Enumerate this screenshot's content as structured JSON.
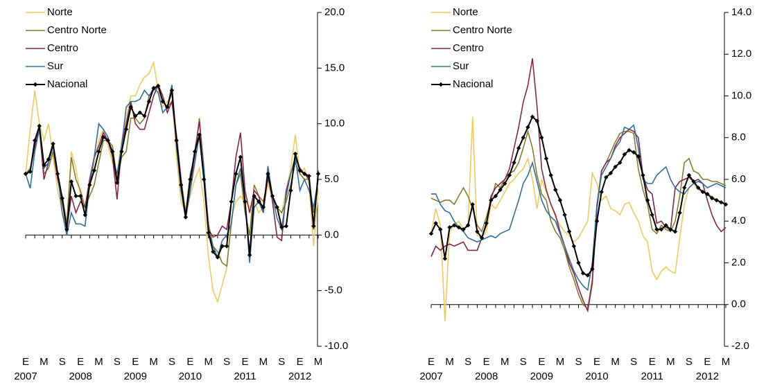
{
  "chart_data": [
    {
      "type": "line",
      "categories": [
        "E",
        null,
        null,
        null,
        "M",
        null,
        null,
        null,
        "S",
        null,
        null,
        null,
        "E",
        null,
        null,
        null,
        "M",
        null,
        null,
        null,
        "S",
        null,
        null,
        null,
        "E",
        null,
        null,
        null,
        "M",
        null,
        null,
        null,
        "S",
        null,
        null,
        null,
        "E",
        null,
        null,
        null,
        "M",
        null,
        null,
        null,
        "S",
        null,
        null,
        null,
        "E",
        null,
        null,
        null,
        "M",
        null,
        null,
        null,
        "S",
        null,
        null,
        null,
        "E",
        null,
        null,
        null,
        "M"
      ],
      "years": [
        "2007",
        "2008",
        "2009",
        "2010",
        "2011",
        "2012"
      ],
      "ylim": [
        -10,
        20
      ],
      "yticks": [
        {
          "value": -10,
          "label": "-10.0"
        },
        {
          "value": -5,
          "label": "-5.0"
        },
        {
          "value": 0,
          "label": "0.0"
        },
        {
          "value": 5,
          "label": "5.0"
        },
        {
          "value": 10,
          "label": "10.0"
        },
        {
          "value": 15,
          "label": "15.0"
        },
        {
          "value": 20,
          "label": "20.0"
        }
      ],
      "legend": "upper-left",
      "series": [
        {
          "name": "Norte",
          "color": "#f2c95c",
          "values": [
            5.5,
            9.5,
            13.0,
            10.0,
            8.5,
            10.0,
            7.0,
            4.0,
            2.0,
            1.0,
            7.5,
            6.0,
            3.5,
            2.5,
            4.5,
            6.5,
            8.5,
            9.5,
            8.0,
            6.5,
            5.5,
            8.5,
            10.5,
            12.5,
            12.5,
            13.5,
            14.2,
            14.5,
            15.5,
            13.0,
            11.5,
            12.0,
            12.5,
            7.0,
            3.0,
            2.0,
            3.5,
            5.0,
            6.0,
            3.0,
            -2.0,
            -5.0,
            -6.0,
            -4.5,
            -3.0,
            1.5,
            3.0,
            3.5,
            3.0,
            2.5,
            3.0,
            2.0,
            2.5,
            4.5,
            3.5,
            2.5,
            2.0,
            4.0,
            6.0,
            9.0,
            5.5,
            6.0,
            4.5,
            -1.0,
            4.0
          ]
        },
        {
          "name": "Centro Norte",
          "color": "#857d2a",
          "values": [
            5.5,
            6.0,
            8.0,
            9.5,
            5.5,
            6.0,
            7.5,
            5.0,
            3.5,
            1.0,
            7.0,
            5.0,
            4.0,
            2.5,
            3.5,
            4.5,
            6.5,
            8.5,
            8.5,
            8.0,
            5.0,
            7.0,
            7.5,
            10.5,
            10.5,
            10.0,
            10.5,
            12.5,
            13.0,
            13.5,
            12.0,
            11.5,
            12.0,
            8.5,
            5.0,
            2.0,
            5.5,
            7.0,
            10.5,
            5.5,
            1.0,
            -1.0,
            -1.5,
            -2.5,
            -2.8,
            1.0,
            4.5,
            5.5,
            2.0,
            0.0,
            4.5,
            3.5,
            3.0,
            5.0,
            3.5,
            2.5,
            2.0,
            3.0,
            4.5,
            6.5,
            5.5,
            5.0,
            5.0,
            2.0,
            5.0
          ]
        },
        {
          "name": "Centro",
          "color": "#8b2346",
          "values": [
            5.5,
            5.8,
            8.0,
            9.5,
            5.0,
            6.5,
            8.0,
            5.0,
            3.0,
            0.5,
            3.5,
            2.0,
            3.0,
            2.5,
            5.0,
            7.0,
            8.0,
            9.2,
            8.5,
            7.0,
            3.2,
            8.0,
            10.0,
            12.0,
            10.0,
            9.5,
            9.5,
            11.0,
            12.5,
            13.5,
            12.5,
            11.0,
            12.0,
            9.0,
            5.0,
            1.5,
            4.0,
            7.5,
            10.2,
            6.0,
            0.5,
            -0.2,
            0.0,
            0.8,
            0.5,
            3.0,
            7.0,
            9.2,
            4.0,
            2.0,
            4.0,
            3.5,
            2.0,
            5.5,
            3.0,
            -0.2,
            -0.5,
            4.0,
            5.5,
            7.0,
            6.0,
            5.5,
            5.0,
            0.5,
            5.8
          ]
        },
        {
          "name": "Sur",
          "color": "#2e6f9e",
          "values": [
            5.5,
            4.2,
            7.5,
            9.5,
            6.0,
            6.5,
            8.0,
            5.5,
            2.0,
            0.0,
            2.0,
            1.0,
            1.0,
            0.8,
            4.5,
            7.0,
            10.0,
            9.5,
            8.8,
            7.0,
            5.5,
            8.0,
            11.5,
            12.0,
            12.0,
            12.2,
            13.0,
            12.5,
            13.2,
            12.8,
            11.0,
            11.5,
            13.5,
            8.0,
            4.0,
            1.5,
            4.0,
            6.5,
            9.0,
            6.0,
            0.3,
            -1.0,
            -2.0,
            -0.5,
            0.0,
            1.0,
            4.5,
            6.0,
            3.0,
            -2.5,
            2.5,
            3.0,
            2.0,
            6.2,
            3.5,
            1.5,
            0.5,
            3.5,
            5.5,
            7.0,
            4.0,
            5.0,
            4.0,
            2.5,
            5.0
          ]
        },
        {
          "name": "Nacional",
          "color": "#000000",
          "marker": "diamond",
          "values": [
            5.5,
            5.7,
            8.5,
            9.8,
            6.3,
            6.8,
            8.2,
            5.5,
            3.3,
            0.5,
            4.8,
            3.5,
            3.5,
            1.8,
            4.5,
            5.8,
            7.5,
            8.8,
            8.5,
            7.5,
            4.7,
            7.5,
            9.5,
            11.5,
            10.7,
            11.0,
            10.7,
            12.0,
            13.2,
            13.4,
            12.0,
            11.5,
            13.0,
            8.5,
            4.5,
            1.6,
            5.0,
            7.5,
            9.0,
            5.0,
            0.2,
            -1.5,
            -2.0,
            -1.0,
            -1.0,
            3.0,
            5.5,
            7.0,
            3.0,
            -1.8,
            3.5,
            3.0,
            2.5,
            5.5,
            3.5,
            2.5,
            0.7,
            0.8,
            4.0,
            7.3,
            5.8,
            5.5,
            5.3,
            0.8,
            5.5
          ]
        }
      ]
    },
    {
      "type": "line",
      "categories": [
        "E",
        null,
        null,
        null,
        "M",
        null,
        null,
        null,
        "S",
        null,
        null,
        null,
        "E",
        null,
        null,
        null,
        "M",
        null,
        null,
        null,
        "S",
        null,
        null,
        null,
        "E",
        null,
        null,
        null,
        "M",
        null,
        null,
        null,
        "S",
        null,
        null,
        null,
        "E",
        null,
        null,
        null,
        "M",
        null,
        null,
        null,
        "S",
        null,
        null,
        null,
        "E",
        null,
        null,
        null,
        "M",
        null,
        null,
        null,
        "S",
        null,
        null,
        null,
        "E",
        null,
        null,
        null,
        "M"
      ],
      "years": [
        "2007",
        "2008",
        "2009",
        "2010",
        "2011",
        "2012"
      ],
      "ylim": [
        -2,
        14
      ],
      "yticks": [
        {
          "value": -2,
          "label": "-2.0"
        },
        {
          "value": 0,
          "label": "0.0"
        },
        {
          "value": 2,
          "label": "2.0"
        },
        {
          "value": 4,
          "label": "4.0"
        },
        {
          "value": 6,
          "label": "6.0"
        },
        {
          "value": 8,
          "label": "8.0"
        },
        {
          "value": 10,
          "label": "10.0"
        },
        {
          "value": 12,
          "label": "12.0"
        },
        {
          "value": 14,
          "label": "14.0"
        }
      ],
      "legend": "upper-left",
      "series": [
        {
          "name": "Norte",
          "color": "#f2c95c",
          "values": [
            3.4,
            4.6,
            3.8,
            -0.8,
            3.5,
            3.8,
            4.0,
            3.6,
            3.8,
            9.0,
            3.3,
            3.2,
            3.5,
            4.8,
            4.6,
            5.0,
            5.4,
            5.8,
            6.0,
            6.3,
            6.5,
            7.0,
            6.0,
            4.6,
            6.0,
            5.4,
            4.8,
            4.2,
            3.8,
            3.5,
            3.3,
            3.0,
            3.2,
            3.6,
            4.0,
            6.3,
            5.8,
            5.0,
            5.2,
            4.6,
            4.5,
            4.3,
            4.8,
            4.9,
            4.4,
            4.0,
            3.3,
            3.0,
            1.6,
            1.2,
            1.6,
            1.8,
            1.6,
            1.5,
            3.2,
            4.8,
            5.6,
            5.8,
            5.5,
            5.4,
            5.3,
            5.2,
            5.0,
            4.9,
            4.8
          ]
        },
        {
          "name": "Centro Norte",
          "color": "#857d2a",
          "values": [
            5.1,
            5.0,
            4.9,
            5.0,
            5.0,
            4.8,
            5.2,
            5.6,
            5.2,
            4.6,
            3.8,
            3.5,
            4.2,
            5.0,
            5.8,
            5.6,
            6.0,
            6.3,
            6.4,
            6.8,
            7.5,
            8.3,
            7.5,
            6.2,
            5.3,
            5.0,
            4.0,
            3.5,
            3.2,
            2.6,
            1.8,
            1.2,
            0.5,
            0.0,
            -0.2,
            1.2,
            4.8,
            6.4,
            6.8,
            7.3,
            7.8,
            8.2,
            8.3,
            8.3,
            8.2,
            6.5,
            5.5,
            4.8,
            3.6,
            3.4,
            3.8,
            3.6,
            3.5,
            4.0,
            5.2,
            6.8,
            7.0,
            6.4,
            6.3,
            6.0,
            6.0,
            5.9,
            5.9,
            5.8,
            5.7
          ]
        },
        {
          "name": "Centro",
          "color": "#8b2346",
          "values": [
            2.3,
            2.8,
            2.6,
            2.8,
            2.9,
            2.8,
            2.9,
            3.0,
            2.6,
            2.6,
            2.6,
            3.2,
            3.8,
            5.2,
            5.6,
            5.8,
            6.0,
            6.5,
            7.5,
            8.5,
            9.7,
            10.5,
            11.8,
            9.5,
            6.5,
            5.5,
            4.8,
            4.3,
            3.5,
            2.8,
            2.0,
            1.5,
            0.8,
            0.2,
            -0.3,
            1.0,
            4.6,
            6.4,
            6.8,
            7.0,
            7.6,
            8.0,
            8.2,
            8.4,
            8.3,
            8.0,
            6.2,
            5.5,
            5.3,
            3.9,
            4.0,
            3.7,
            3.6,
            5.6,
            5.9,
            6.0,
            6.1,
            5.9,
            6.0,
            5.8,
            5.0,
            4.3,
            3.8,
            3.5,
            3.7
          ]
        },
        {
          "name": "Sur",
          "color": "#2e6f9e",
          "values": [
            5.3,
            5.3,
            4.8,
            4.5,
            4.4,
            4.0,
            3.7,
            3.5,
            3.2,
            3.1,
            3.0,
            3.1,
            3.2,
            3.3,
            3.2,
            3.4,
            3.5,
            3.6,
            4.3,
            5.0,
            5.8,
            6.2,
            6.8,
            5.9,
            5.0,
            4.5,
            4.2,
            4.0,
            3.4,
            2.8,
            2.2,
            1.6,
            1.2,
            0.9,
            0.7,
            2.0,
            4.8,
            6.2,
            6.6,
            7.0,
            7.5,
            7.8,
            8.5,
            8.4,
            8.6,
            7.5,
            6.0,
            5.8,
            5.8,
            6.2,
            6.4,
            6.6,
            6.0,
            5.6,
            5.4,
            5.3,
            5.6,
            5.8,
            5.9,
            5.8,
            5.6,
            5.7,
            5.8,
            5.7,
            5.6
          ]
        },
        {
          "name": "Nacional",
          "color": "#000000",
          "marker": "diamond",
          "values": [
            3.4,
            3.9,
            3.6,
            2.2,
            3.7,
            3.8,
            3.7,
            3.6,
            3.8,
            4.8,
            3.5,
            3.2,
            3.9,
            5.0,
            5.2,
            5.5,
            5.8,
            6.2,
            6.8,
            7.5,
            8.0,
            8.5,
            9.0,
            8.8,
            8.0,
            7.0,
            6.2,
            5.5,
            5.0,
            4.3,
            3.5,
            2.8,
            2.0,
            1.5,
            1.4,
            1.7,
            4.0,
            5.4,
            6.1,
            6.3,
            6.6,
            6.8,
            7.2,
            7.4,
            7.3,
            7.1,
            6.2,
            5.0,
            4.3,
            3.6,
            3.6,
            3.8,
            3.6,
            3.5,
            4.4,
            5.6,
            6.2,
            5.9,
            5.6,
            5.4,
            5.3,
            5.1,
            5.0,
            4.9,
            4.8
          ]
        }
      ]
    }
  ]
}
